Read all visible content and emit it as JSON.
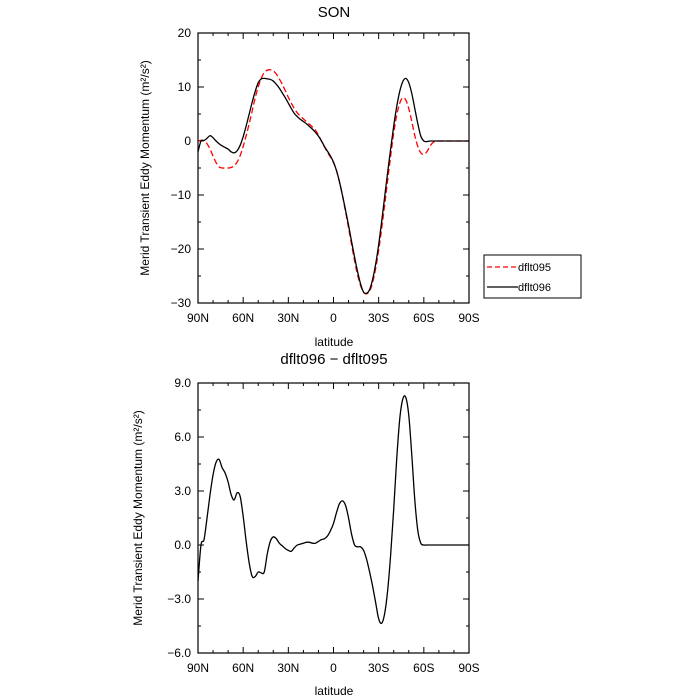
{
  "chart_data": [
    {
      "type": "line",
      "title": "SON",
      "xlabel": "latitude",
      "ylabel": "Merid Transient Eddy Momentum (m²/s²)",
      "xlim": [
        90,
        -90
      ],
      "ylim": [
        -30,
        20
      ],
      "xticks": [
        90,
        60,
        30,
        0,
        -30,
        -60,
        -90
      ],
      "xtick_labels": [
        "90N",
        "60N",
        "30N",
        "0",
        "30S",
        "60S",
        "90S"
      ],
      "yticks": [
        20,
        10,
        0,
        -10,
        -20,
        -30
      ],
      "ytick_labels": [
        "20",
        "10",
        "0",
        "−10",
        "−20",
        "−30"
      ],
      "legend_position": "right",
      "series": [
        {
          "name": "dflt095",
          "color": "#ff0000",
          "dashed": true,
          "x": [
            90,
            88,
            86,
            84,
            82,
            80,
            78,
            76,
            74,
            72,
            70,
            68,
            66,
            64,
            62,
            60,
            58,
            56,
            54,
            52,
            50,
            48,
            46,
            44,
            42,
            40,
            38,
            36,
            34,
            32,
            30,
            28,
            26,
            24,
            22,
            20,
            18,
            16,
            14,
            12,
            10,
            8,
            6,
            4,
            2,
            0,
            -2,
            -4,
            -6,
            -8,
            -10,
            -12,
            -14,
            -16,
            -18,
            -20,
            -22,
            -24,
            -26,
            -28,
            -30,
            -32,
            -34,
            -36,
            -38,
            -40,
            -42,
            -44,
            -46,
            -48,
            -50,
            -52,
            -54,
            -56,
            -58,
            -60,
            -62,
            -64,
            -66,
            -68,
            -70,
            -72,
            -74,
            -76,
            -78,
            -80,
            -82,
            -84,
            -86,
            -88,
            -90
          ],
          "y": [
            0,
            0.1,
            0,
            -0.5,
            -1.5,
            -2.8,
            -4.0,
            -4.8,
            -5.0,
            -5.0,
            -5.0,
            -4.9,
            -4.6,
            -3.9,
            -2.7,
            -1.0,
            1.0,
            3.2,
            5.6,
            8.0,
            10.0,
            11.6,
            12.7,
            13.1,
            13.2,
            13.0,
            12.4,
            11.5,
            10.5,
            9.3,
            8.1,
            7.0,
            6.0,
            5.2,
            4.6,
            4.1,
            3.6,
            3.1,
            2.6,
            2.0,
            1.1,
            0,
            -1.1,
            -2.1,
            -3.0,
            -4.0,
            -5.5,
            -7.6,
            -10.2,
            -13.1,
            -16.1,
            -19.2,
            -22.2,
            -24.8,
            -26.8,
            -28.0,
            -28.3,
            -27.8,
            -26.2,
            -23.6,
            -20.2,
            -16.2,
            -11.8,
            -7.2,
            -2.7,
            1.5,
            4.8,
            7.0,
            8.0,
            7.6,
            6.0,
            3.6,
            1.0,
            -1.0,
            -2.2,
            -2.5,
            -2.0,
            -1.0,
            -0.3,
            0,
            0,
            0,
            0,
            0,
            0,
            0,
            0,
            0,
            0,
            0,
            0
          ]
        },
        {
          "name": "dflt096",
          "color": "#000000",
          "dashed": false,
          "x": [
            90,
            88,
            86,
            84,
            82,
            80,
            78,
            76,
            74,
            72,
            70,
            68,
            66,
            64,
            62,
            60,
            58,
            56,
            54,
            52,
            50,
            48,
            46,
            44,
            42,
            40,
            38,
            36,
            34,
            32,
            30,
            28,
            26,
            24,
            22,
            20,
            18,
            16,
            14,
            12,
            10,
            8,
            6,
            4,
            2,
            0,
            -2,
            -4,
            -6,
            -8,
            -10,
            -12,
            -14,
            -16,
            -18,
            -20,
            -22,
            -24,
            -26,
            -28,
            -30,
            -32,
            -34,
            -36,
            -38,
            -40,
            -42,
            -44,
            -46,
            -48,
            -50,
            -52,
            -54,
            -56,
            -58,
            -60,
            -62,
            -64,
            -66,
            -68,
            -70,
            -72,
            -74,
            -76,
            -78,
            -80,
            -82,
            -84,
            -86,
            -88,
            -90
          ],
          "y": [
            -2.0,
            0,
            0.1,
            0.5,
            1.0,
            0.6,
            0,
            -0.5,
            -0.9,
            -1.2,
            -1.5,
            -2.0,
            -2.2,
            -1.8,
            -0.8,
            0.8,
            2.8,
            5.0,
            7.2,
            9.2,
            10.8,
            11.5,
            11.6,
            11.5,
            11.4,
            11.1,
            10.5,
            9.8,
            8.9,
            8.0,
            7.0,
            6.0,
            5.1,
            4.5,
            4.0,
            3.6,
            3.2,
            2.7,
            2.2,
            1.6,
            0.9,
            0,
            -1.0,
            -1.9,
            -2.8,
            -3.9,
            -5.5,
            -7.6,
            -10.1,
            -12.8,
            -15.6,
            -18.6,
            -21.5,
            -24.2,
            -26.5,
            -28.0,
            -28.2,
            -27.5,
            -25.6,
            -22.8,
            -19.2,
            -14.9,
            -10.3,
            -5.7,
            -1.4,
            2.8,
            6.4,
            9.2,
            11.0,
            11.6,
            10.8,
            8.8,
            6.0,
            3.2,
            0.9,
            0,
            -0.1,
            0,
            0,
            0,
            0,
            0,
            0,
            0,
            0,
            0,
            0,
            0,
            0,
            0,
            0
          ]
        }
      ]
    },
    {
      "type": "line",
      "title": "dflt096 − dflt095",
      "xlabel": "latitude",
      "ylabel": "Merid Transient Eddy Momentum (m²/s²)",
      "xlim": [
        90,
        -90
      ],
      "ylim": [
        -6,
        9
      ],
      "xticks": [
        90,
        60,
        30,
        0,
        -30,
        -60,
        -90
      ],
      "xtick_labels": [
        "90N",
        "60N",
        "30N",
        "0",
        "30S",
        "60S",
        "90S"
      ],
      "yticks": [
        9,
        6,
        3,
        0,
        -3,
        -6
      ],
      "ytick_labels": [
        "9.0",
        "6.0",
        "3.0",
        "0.0",
        "−3.0",
        "−6.0"
      ],
      "series": [
        {
          "color": "#000000",
          "dashed": false,
          "x": [
            90,
            88,
            86,
            84,
            82,
            80,
            78,
            76,
            74,
            72,
            70,
            68,
            66,
            64,
            62,
            60,
            58,
            56,
            54,
            52,
            50,
            48,
            46,
            44,
            42,
            40,
            38,
            36,
            34,
            32,
            30,
            28,
            26,
            24,
            22,
            20,
            18,
            16,
            14,
            12,
            10,
            8,
            6,
            4,
            2,
            0,
            -2,
            -4,
            -6,
            -8,
            -10,
            -12,
            -14,
            -16,
            -18,
            -20,
            -22,
            -24,
            -26,
            -28,
            -30,
            -32,
            -34,
            -36,
            -38,
            -40,
            -42,
            -44,
            -46,
            -48,
            -50,
            -52,
            -54,
            -56,
            -58,
            -60,
            -62,
            -64,
            -66,
            -68,
            -70,
            -72,
            -74,
            -76,
            -78,
            -80,
            -82,
            -84,
            -86,
            -88,
            -90
          ],
          "y": [
            -2.0,
            0,
            0.3,
            1.5,
            2.8,
            3.9,
            4.6,
            4.75,
            4.3,
            4.0,
            3.5,
            2.8,
            2.5,
            2.9,
            2.7,
            1.6,
            0.2,
            -1.0,
            -1.75,
            -1.75,
            -1.5,
            -1.55,
            -1.5,
            -0.5,
            0.2,
            0.45,
            0.35,
            0.1,
            -0.05,
            -0.2,
            -0.3,
            -0.35,
            -0.15,
            0,
            0.05,
            0.1,
            0.15,
            0.15,
            0.1,
            0.1,
            0.2,
            0.3,
            0.35,
            0.5,
            0.8,
            1.2,
            1.8,
            2.3,
            2.45,
            2.2,
            1.5,
            0.6,
            0,
            -0.1,
            -0.1,
            -0.3,
            -0.8,
            -1.5,
            -2.3,
            -3.2,
            -4.1,
            -4.35,
            -3.8,
            -2.5,
            -0.5,
            2.0,
            4.8,
            7.0,
            8.1,
            8.2,
            7.2,
            5.0,
            2.5,
            0.8,
            0.1,
            0,
            0,
            0,
            0,
            0,
            0,
            0,
            0,
            0,
            0,
            0,
            0,
            0,
            0,
            0,
            0
          ]
        }
      ]
    }
  ]
}
